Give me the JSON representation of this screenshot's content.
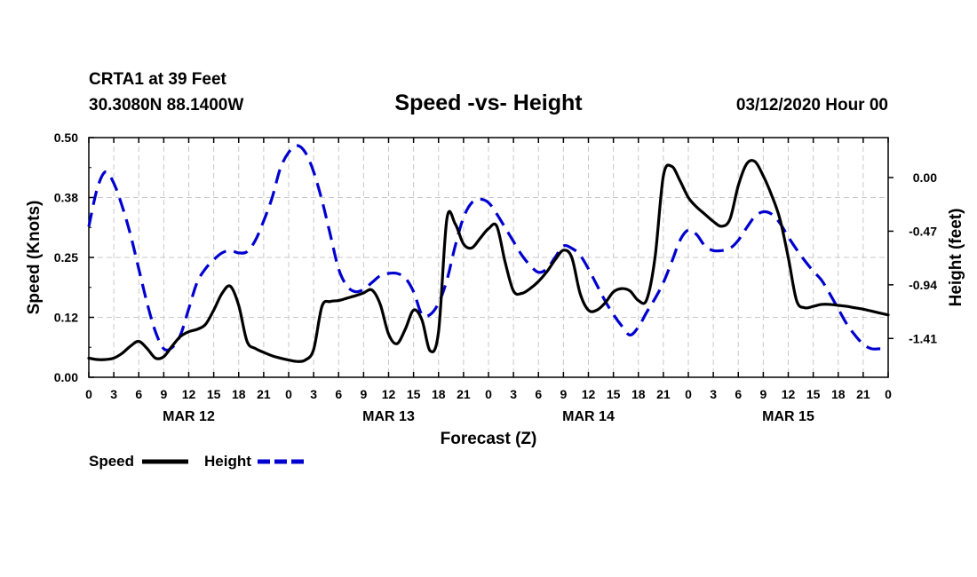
{
  "header": {
    "station": "CRTA1 at 39 Feet",
    "coords": "30.3080N 88.1400W",
    "title": "Speed -vs- Height",
    "run": "03/12/2020 Hour 00"
  },
  "chart_data": {
    "type": "line",
    "title": "Speed -vs- Height",
    "xlabel": "Forecast (Z)",
    "ylabel": "Speed (Knots)",
    "y2label": "Height (feet)",
    "xlim": [
      0,
      96
    ],
    "ylim": [
      0,
      0.5
    ],
    "y2lim": [
      -1.75,
      0.35
    ],
    "grid": true,
    "x_tick_labels": [
      "0",
      "3",
      "6",
      "9",
      "12",
      "15",
      "18",
      "21",
      "0",
      "3",
      "6",
      "9",
      "12",
      "15",
      "18",
      "21",
      "0",
      "3",
      "6",
      "9",
      "12",
      "15",
      "18",
      "21",
      "0",
      "3",
      "6",
      "9",
      "12",
      "15",
      "18",
      "21",
      "0"
    ],
    "date_labels": [
      {
        "label": "MAR 12",
        "hour": 12
      },
      {
        "label": "MAR 13",
        "hour": 36
      },
      {
        "label": "MAR 14",
        "hour": 60
      },
      {
        "label": "MAR 15",
        "hour": 84
      }
    ],
    "y_ticks": [
      {
        "value": 0.0,
        "label": "0.00"
      },
      {
        "value": 0.125,
        "label": "0.12"
      },
      {
        "value": 0.25,
        "label": "0.25"
      },
      {
        "value": 0.375,
        "label": "0.38"
      },
      {
        "value": 0.5,
        "label": "0.50"
      }
    ],
    "y2_ticks": [
      {
        "value": 0.0,
        "label": "0.00"
      },
      {
        "value": -0.47,
        "label": "-0.47"
      },
      {
        "value": -0.94,
        "label": "-0.94"
      },
      {
        "value": -1.41,
        "label": "-1.41"
      }
    ],
    "series": [
      {
        "name": "Speed",
        "axis": "left",
        "color": "#000000",
        "dash": "solid",
        "x": [
          0,
          1,
          2,
          3,
          4,
          5,
          6,
          7,
          8,
          9,
          10,
          11,
          12,
          13,
          14,
          15,
          16,
          17,
          18,
          19,
          20,
          21,
          22,
          23,
          24,
          25,
          26,
          27,
          28,
          29,
          30,
          31,
          32,
          33,
          34,
          35,
          36,
          37,
          38,
          39,
          40,
          41,
          42,
          43,
          44,
          45,
          46,
          47,
          48,
          49,
          50,
          51,
          52,
          53,
          54,
          55,
          56,
          57,
          58,
          59,
          60,
          61,
          62,
          63,
          64,
          65,
          66,
          67,
          68,
          69,
          70,
          71,
          72,
          73,
          74,
          75,
          76,
          77,
          78,
          79,
          80,
          81,
          82,
          83,
          84,
          85,
          86,
          87,
          88,
          89,
          90,
          91,
          92,
          93,
          94,
          95,
          96
        ],
        "y": [
          0.04,
          0.037,
          0.037,
          0.04,
          0.05,
          0.065,
          0.075,
          0.06,
          0.04,
          0.043,
          0.065,
          0.085,
          0.095,
          0.1,
          0.11,
          0.14,
          0.175,
          0.19,
          0.15,
          0.075,
          0.06,
          0.052,
          0.045,
          0.04,
          0.036,
          0.033,
          0.036,
          0.058,
          0.148,
          0.158,
          0.16,
          0.165,
          0.17,
          0.176,
          0.182,
          0.152,
          0.09,
          0.07,
          0.1,
          0.14,
          0.12,
          0.055,
          0.095,
          0.33,
          0.32,
          0.278,
          0.27,
          0.29,
          0.31,
          0.315,
          0.24,
          0.18,
          0.175,
          0.185,
          0.2,
          0.22,
          0.245,
          0.265,
          0.25,
          0.175,
          0.14,
          0.14,
          0.155,
          0.178,
          0.185,
          0.18,
          0.16,
          0.162,
          0.25,
          0.42,
          0.44,
          0.41,
          0.375,
          0.355,
          0.34,
          0.325,
          0.315,
          0.33,
          0.4,
          0.445,
          0.45,
          0.42,
          0.38,
          0.33,
          0.25,
          0.16,
          0.145,
          0.148,
          0.152,
          0.152,
          0.15,
          0.148,
          0.145,
          0.142,
          0.138,
          0.134,
          0.13
        ]
      },
      {
        "name": "Height",
        "axis": "right",
        "color": "#0000d0",
        "dash": "dashed",
        "x": [
          0,
          1,
          2,
          3,
          4,
          5,
          6,
          7,
          8,
          9,
          10,
          11,
          12,
          13,
          14,
          15,
          16,
          17,
          18,
          19,
          20,
          21,
          22,
          23,
          24,
          25,
          26,
          27,
          28,
          29,
          30,
          31,
          32,
          33,
          34,
          35,
          36,
          37,
          38,
          39,
          40,
          41,
          42,
          43,
          44,
          45,
          46,
          47,
          48,
          49,
          50,
          51,
          52,
          53,
          54,
          55,
          56,
          57,
          58,
          59,
          60,
          61,
          62,
          63,
          64,
          65,
          66,
          67,
          68,
          69,
          70,
          71,
          72,
          73,
          74,
          75,
          76,
          77,
          78,
          79,
          80,
          81,
          82,
          83,
          84,
          85,
          86,
          87,
          88,
          89,
          90,
          91,
          92,
          93,
          94,
          95,
          96
        ],
        "y": [
          -0.43,
          -0.1,
          0.05,
          -0.05,
          -0.25,
          -0.5,
          -0.8,
          -1.1,
          -1.35,
          -1.5,
          -1.49,
          -1.38,
          -1.15,
          -0.92,
          -0.8,
          -0.72,
          -0.66,
          -0.64,
          -0.66,
          -0.65,
          -0.55,
          -0.38,
          -0.18,
          0.08,
          0.22,
          0.28,
          0.22,
          0.05,
          -0.2,
          -0.5,
          -0.8,
          -0.95,
          -1.0,
          -0.98,
          -0.92,
          -0.86,
          -0.84,
          -0.84,
          -0.88,
          -1.0,
          -1.2,
          -1.2,
          -1.1,
          -0.9,
          -0.6,
          -0.35,
          -0.22,
          -0.19,
          -0.22,
          -0.32,
          -0.44,
          -0.56,
          -0.68,
          -0.77,
          -0.83,
          -0.8,
          -0.7,
          -0.6,
          -0.62,
          -0.68,
          -0.8,
          -0.94,
          -1.08,
          -1.2,
          -1.3,
          -1.38,
          -1.31,
          -1.18,
          -1.06,
          -0.92,
          -0.74,
          -0.55,
          -0.46,
          -0.5,
          -0.6,
          -0.64,
          -0.64,
          -0.62,
          -0.55,
          -0.44,
          -0.34,
          -0.3,
          -0.32,
          -0.4,
          -0.52,
          -0.63,
          -0.73,
          -0.82,
          -0.9,
          -1.02,
          -1.15,
          -1.28,
          -1.38,
          -1.46,
          -1.5,
          -1.5,
          -1.5
        ]
      }
    ],
    "legend": [
      {
        "label": "Speed",
        "color": "#000000",
        "dash": "solid"
      },
      {
        "label": "Height",
        "color": "#0000d0",
        "dash": "dashed"
      }
    ]
  }
}
